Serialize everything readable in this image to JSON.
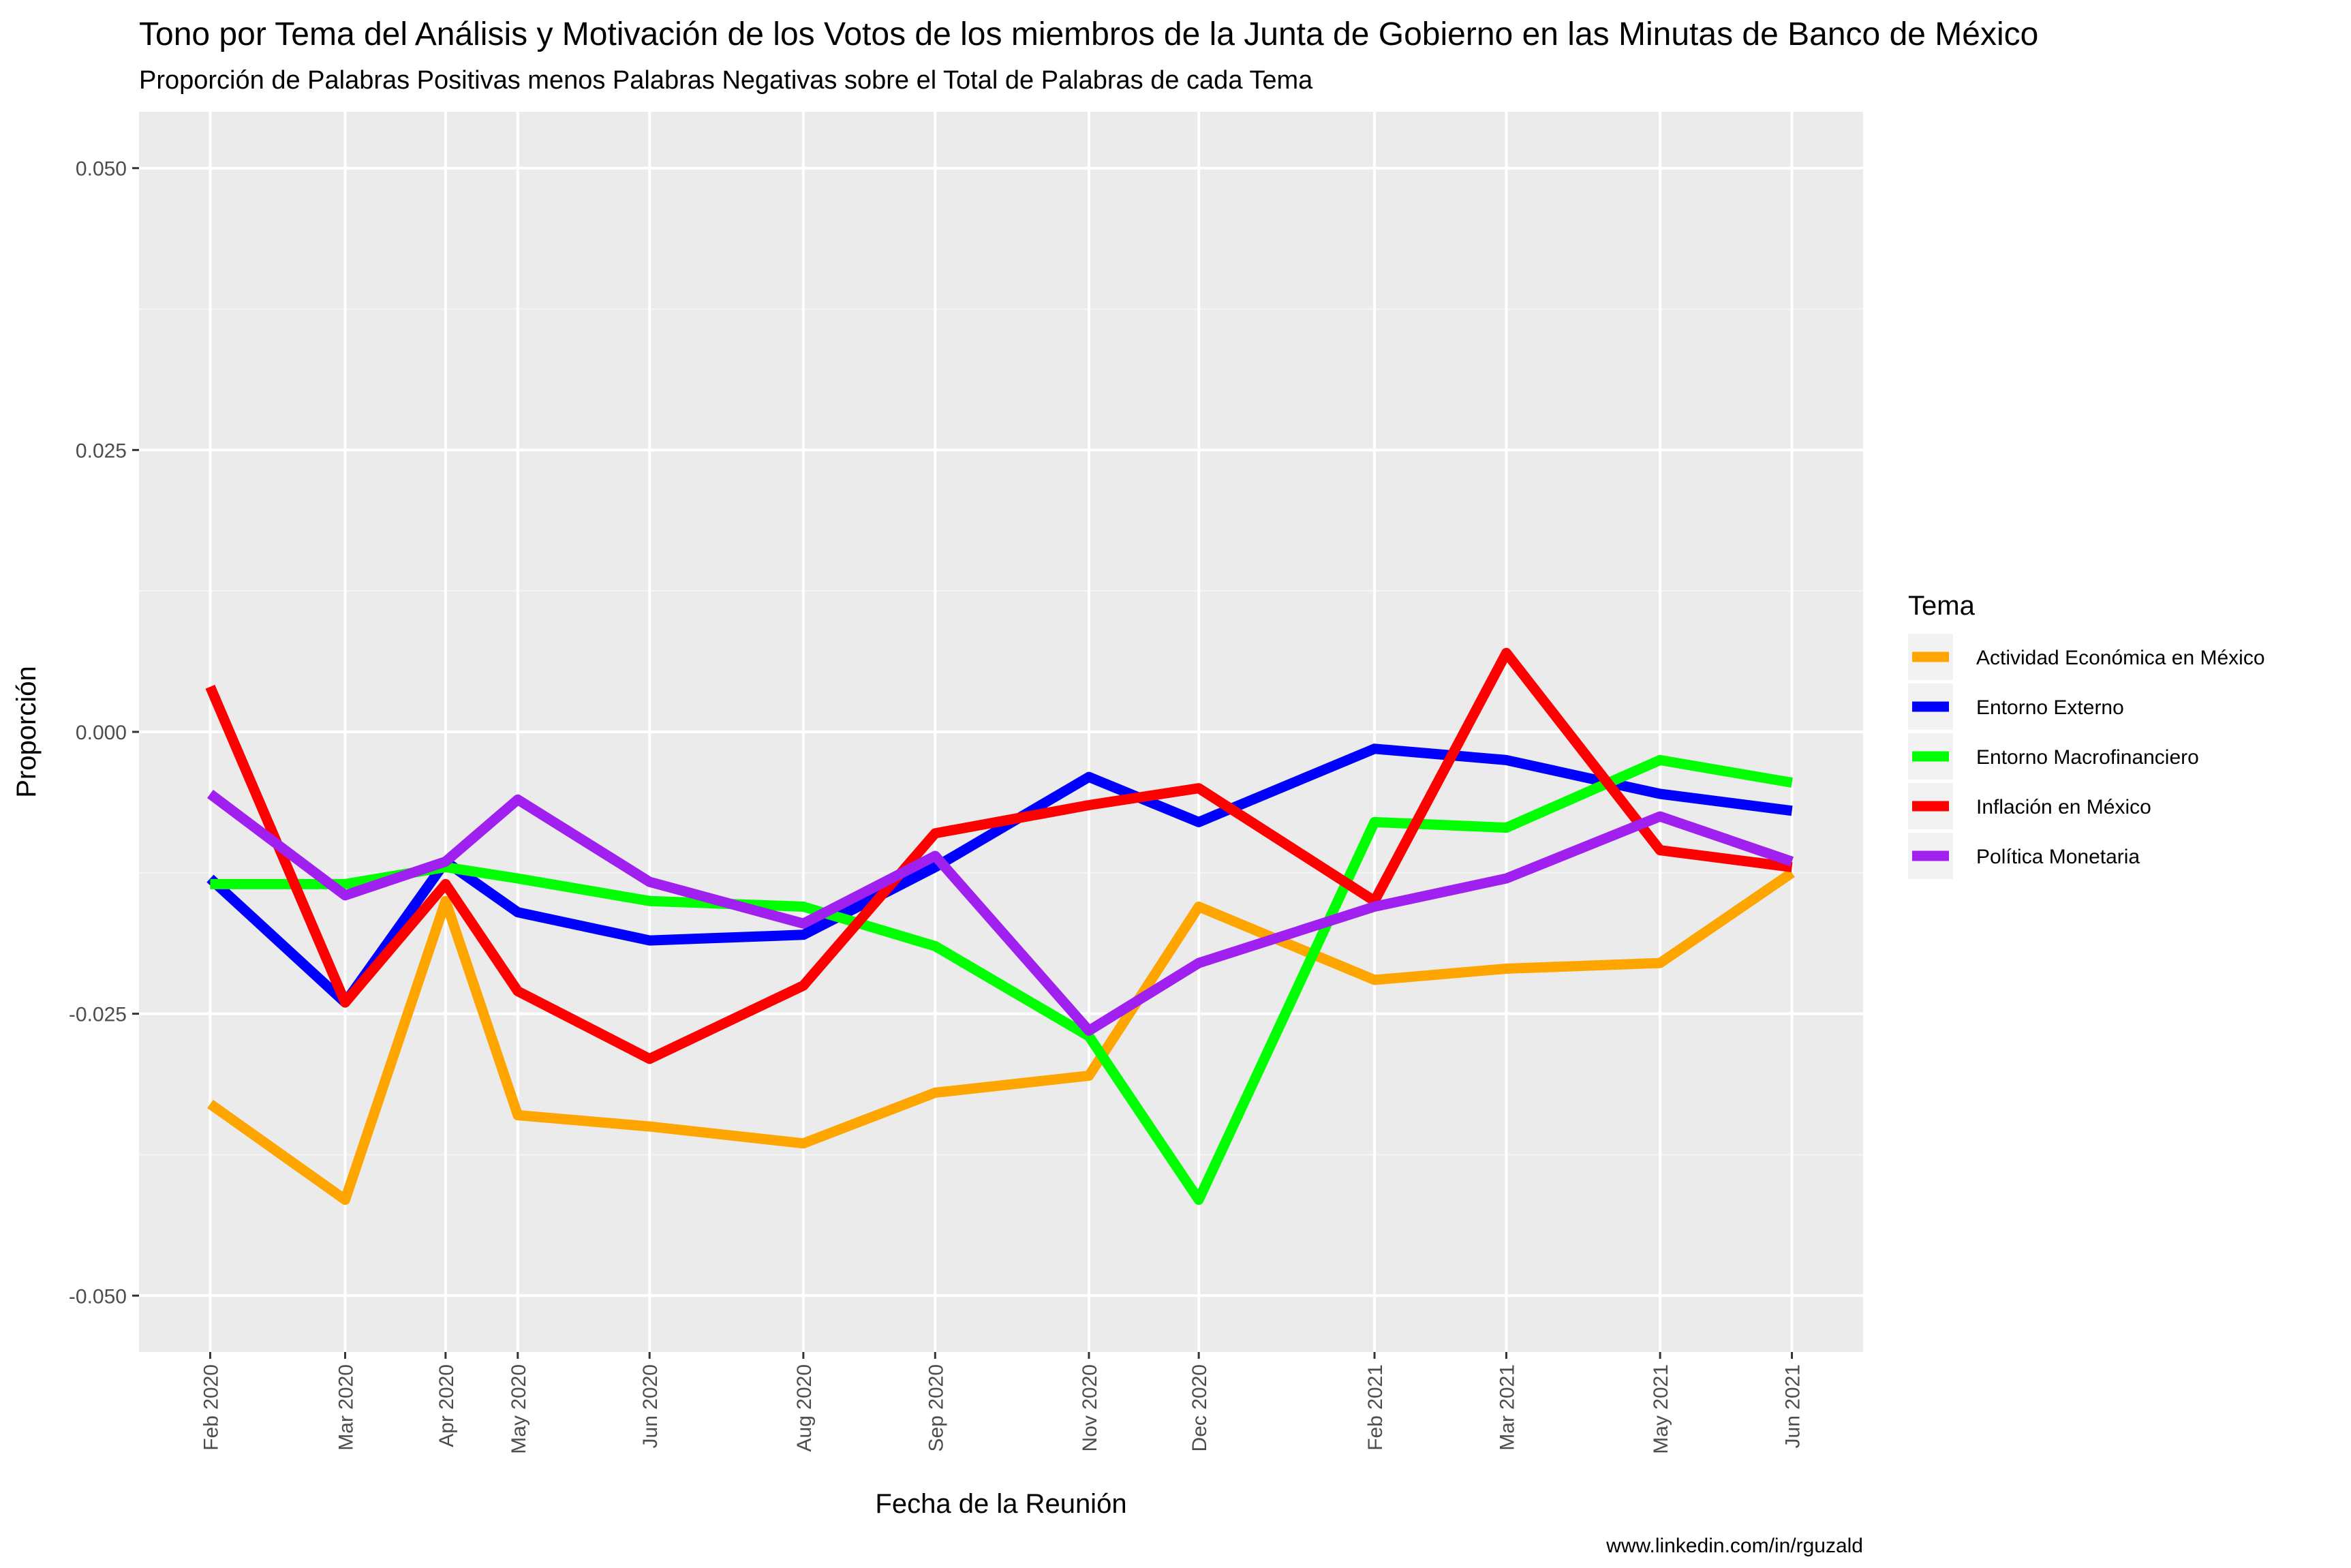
{
  "chart_data": {
    "type": "line",
    "title": "Tono por Tema del Análisis y Motivación de los Votos de los miembros de la Junta de Gobierno en las Minutas de Banco de México",
    "subtitle": "Proporción de Palabras Positivas menos Palabras Negativas sobre el Total de Palabras de cada Tema",
    "xlabel": "Fecha de la Reunión",
    "ylabel": "Proporción",
    "caption": "www.linkedin.com/in/rguzald",
    "x": [
      "2020-02-06",
      "2020-03-20",
      "2020-05-14",
      "2020-06-25",
      "2020-08-13",
      "2020-09-24",
      "2020-11-12",
      "2020-12-17",
      "2021-02-11",
      "2021-03-25",
      "2021-05-13",
      "2021-06-24",
      "2020-04-21"
    ],
    "x_dates": [
      "2020-02-06",
      "2020-03-20",
      "2020-04-21",
      "2020-05-14",
      "2020-06-25",
      "2020-08-13",
      "2020-09-24",
      "2020-11-12",
      "2020-12-17",
      "2021-02-11",
      "2021-03-25",
      "2021-05-13",
      "2021-06-24"
    ],
    "x_tick_labels": [
      "Feb 2020",
      "Mar 2020",
      "Apr 2020",
      "May 2020",
      "Jun 2020",
      "Aug 2020",
      "Sep 2020",
      "Nov 2020",
      "Dec 2020",
      "Feb 2021",
      "Mar 2021",
      "May 2021",
      "Jun 2021"
    ],
    "y_ticks": [
      0.05,
      0.025,
      0.0,
      -0.025,
      -0.05
    ],
    "y_tick_labels": [
      "0.050",
      "0.025",
      "0.000",
      "-0.025",
      "-0.050"
    ],
    "ylim": [
      -0.055,
      0.055
    ],
    "grid": true,
    "legend_title": "Tema",
    "legend_position": "right",
    "series": [
      {
        "name": "Actividad Económica en México",
        "color": "#FFA500",
        "values": [
          -0.033,
          -0.0415,
          -0.034,
          -0.035,
          -0.0365,
          -0.032,
          -0.0305,
          -0.0155,
          -0.022,
          -0.021,
          -0.0205,
          -0.0125,
          -0.015
        ]
      },
      {
        "name": "Entorno Externo",
        "color": "#0000FF",
        "values": [
          -0.013,
          -0.024,
          -0.016,
          -0.0185,
          -0.018,
          -0.012,
          -0.004,
          -0.008,
          -0.0015,
          -0.0025,
          -0.0055,
          -0.007,
          -0.0115
        ]
      },
      {
        "name": "Entorno Macrofinanciero",
        "color": "#00FF00",
        "values": [
          -0.0135,
          -0.0135,
          -0.013,
          -0.015,
          -0.0155,
          -0.019,
          -0.027,
          -0.0415,
          -0.008,
          -0.0085,
          -0.0025,
          -0.0045,
          -0.012
        ]
      },
      {
        "name": "Inflación en México",
        "color": "#FF0000",
        "values": [
          0.004,
          -0.024,
          -0.023,
          -0.029,
          -0.0225,
          -0.009,
          -0.0065,
          -0.005,
          -0.015,
          0.007,
          -0.0105,
          -0.012,
          -0.0135
        ]
      },
      {
        "name": "Política Monetaria",
        "color": "#A020F0",
        "values": [
          -0.0055,
          -0.0145,
          -0.006,
          -0.0133,
          -0.017,
          -0.011,
          -0.0265,
          -0.0205,
          -0.0155,
          -0.013,
          -0.0075,
          -0.0115,
          -0.0115
        ]
      }
    ]
  }
}
